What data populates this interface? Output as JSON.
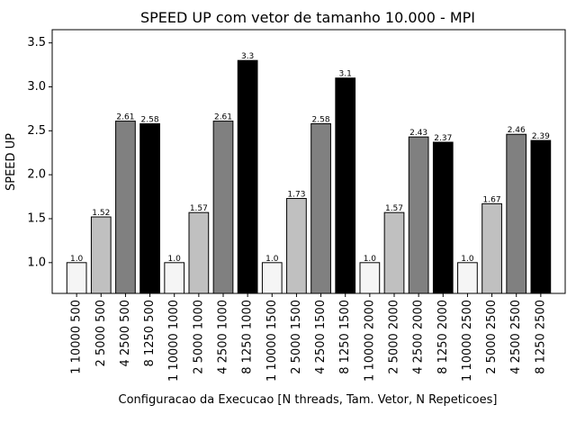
{
  "chart_data": {
    "type": "bar",
    "title": "SPEED UP com vetor de tamanho 10.000 - MPI",
    "xlabel": "Configuracao da Execucao [N threads, Tam. Vetor, N Repeticoes]",
    "ylabel": "SPEED UP",
    "ylim": [
      0.65,
      3.65
    ],
    "yticks": [
      1.0,
      1.5,
      2.0,
      2.5,
      3.0,
      3.5
    ],
    "ytick_labels": [
      "1.0",
      "1.5",
      "2.0",
      "2.5",
      "3.0",
      "3.5"
    ],
    "grid": false,
    "legend": "none",
    "categories": [
      "1 10000 500",
      "2 5000 500",
      "4 2500 500",
      "8 1250 500",
      "1 10000 1000",
      "2 5000 1000",
      "4 2500 1000",
      "8 1250 1000",
      "1 10000 1500",
      "2 5000 1500",
      "4 2500 1500",
      "8 1250 1500",
      "1 10000 2000",
      "2 5000 2000",
      "4 2500 2000",
      "8 1250 2000",
      "1 10000 2500",
      "2 5000 2500",
      "4 2500 2500",
      "8 1250 2500"
    ],
    "values": [
      1.0,
      1.52,
      2.61,
      2.58,
      1.0,
      1.57,
      2.61,
      3.3,
      1.0,
      1.73,
      2.58,
      3.1,
      1.0,
      1.57,
      2.43,
      2.37,
      1.0,
      1.67,
      2.46,
      2.39
    ],
    "value_labels": [
      "1.0",
      "1.52",
      "2.61",
      "2.58",
      "1.0",
      "1.57",
      "2.61",
      "3.3",
      "1.0",
      "1.73",
      "2.58",
      "3.1",
      "1.0",
      "1.57",
      "2.43",
      "2.37",
      "1.0",
      "1.67",
      "2.46",
      "2.39"
    ],
    "bar_colors": [
      "#f5f5f5",
      "#c0c0c0",
      "#808080",
      "#000000"
    ],
    "edge_color": "#000000"
  }
}
